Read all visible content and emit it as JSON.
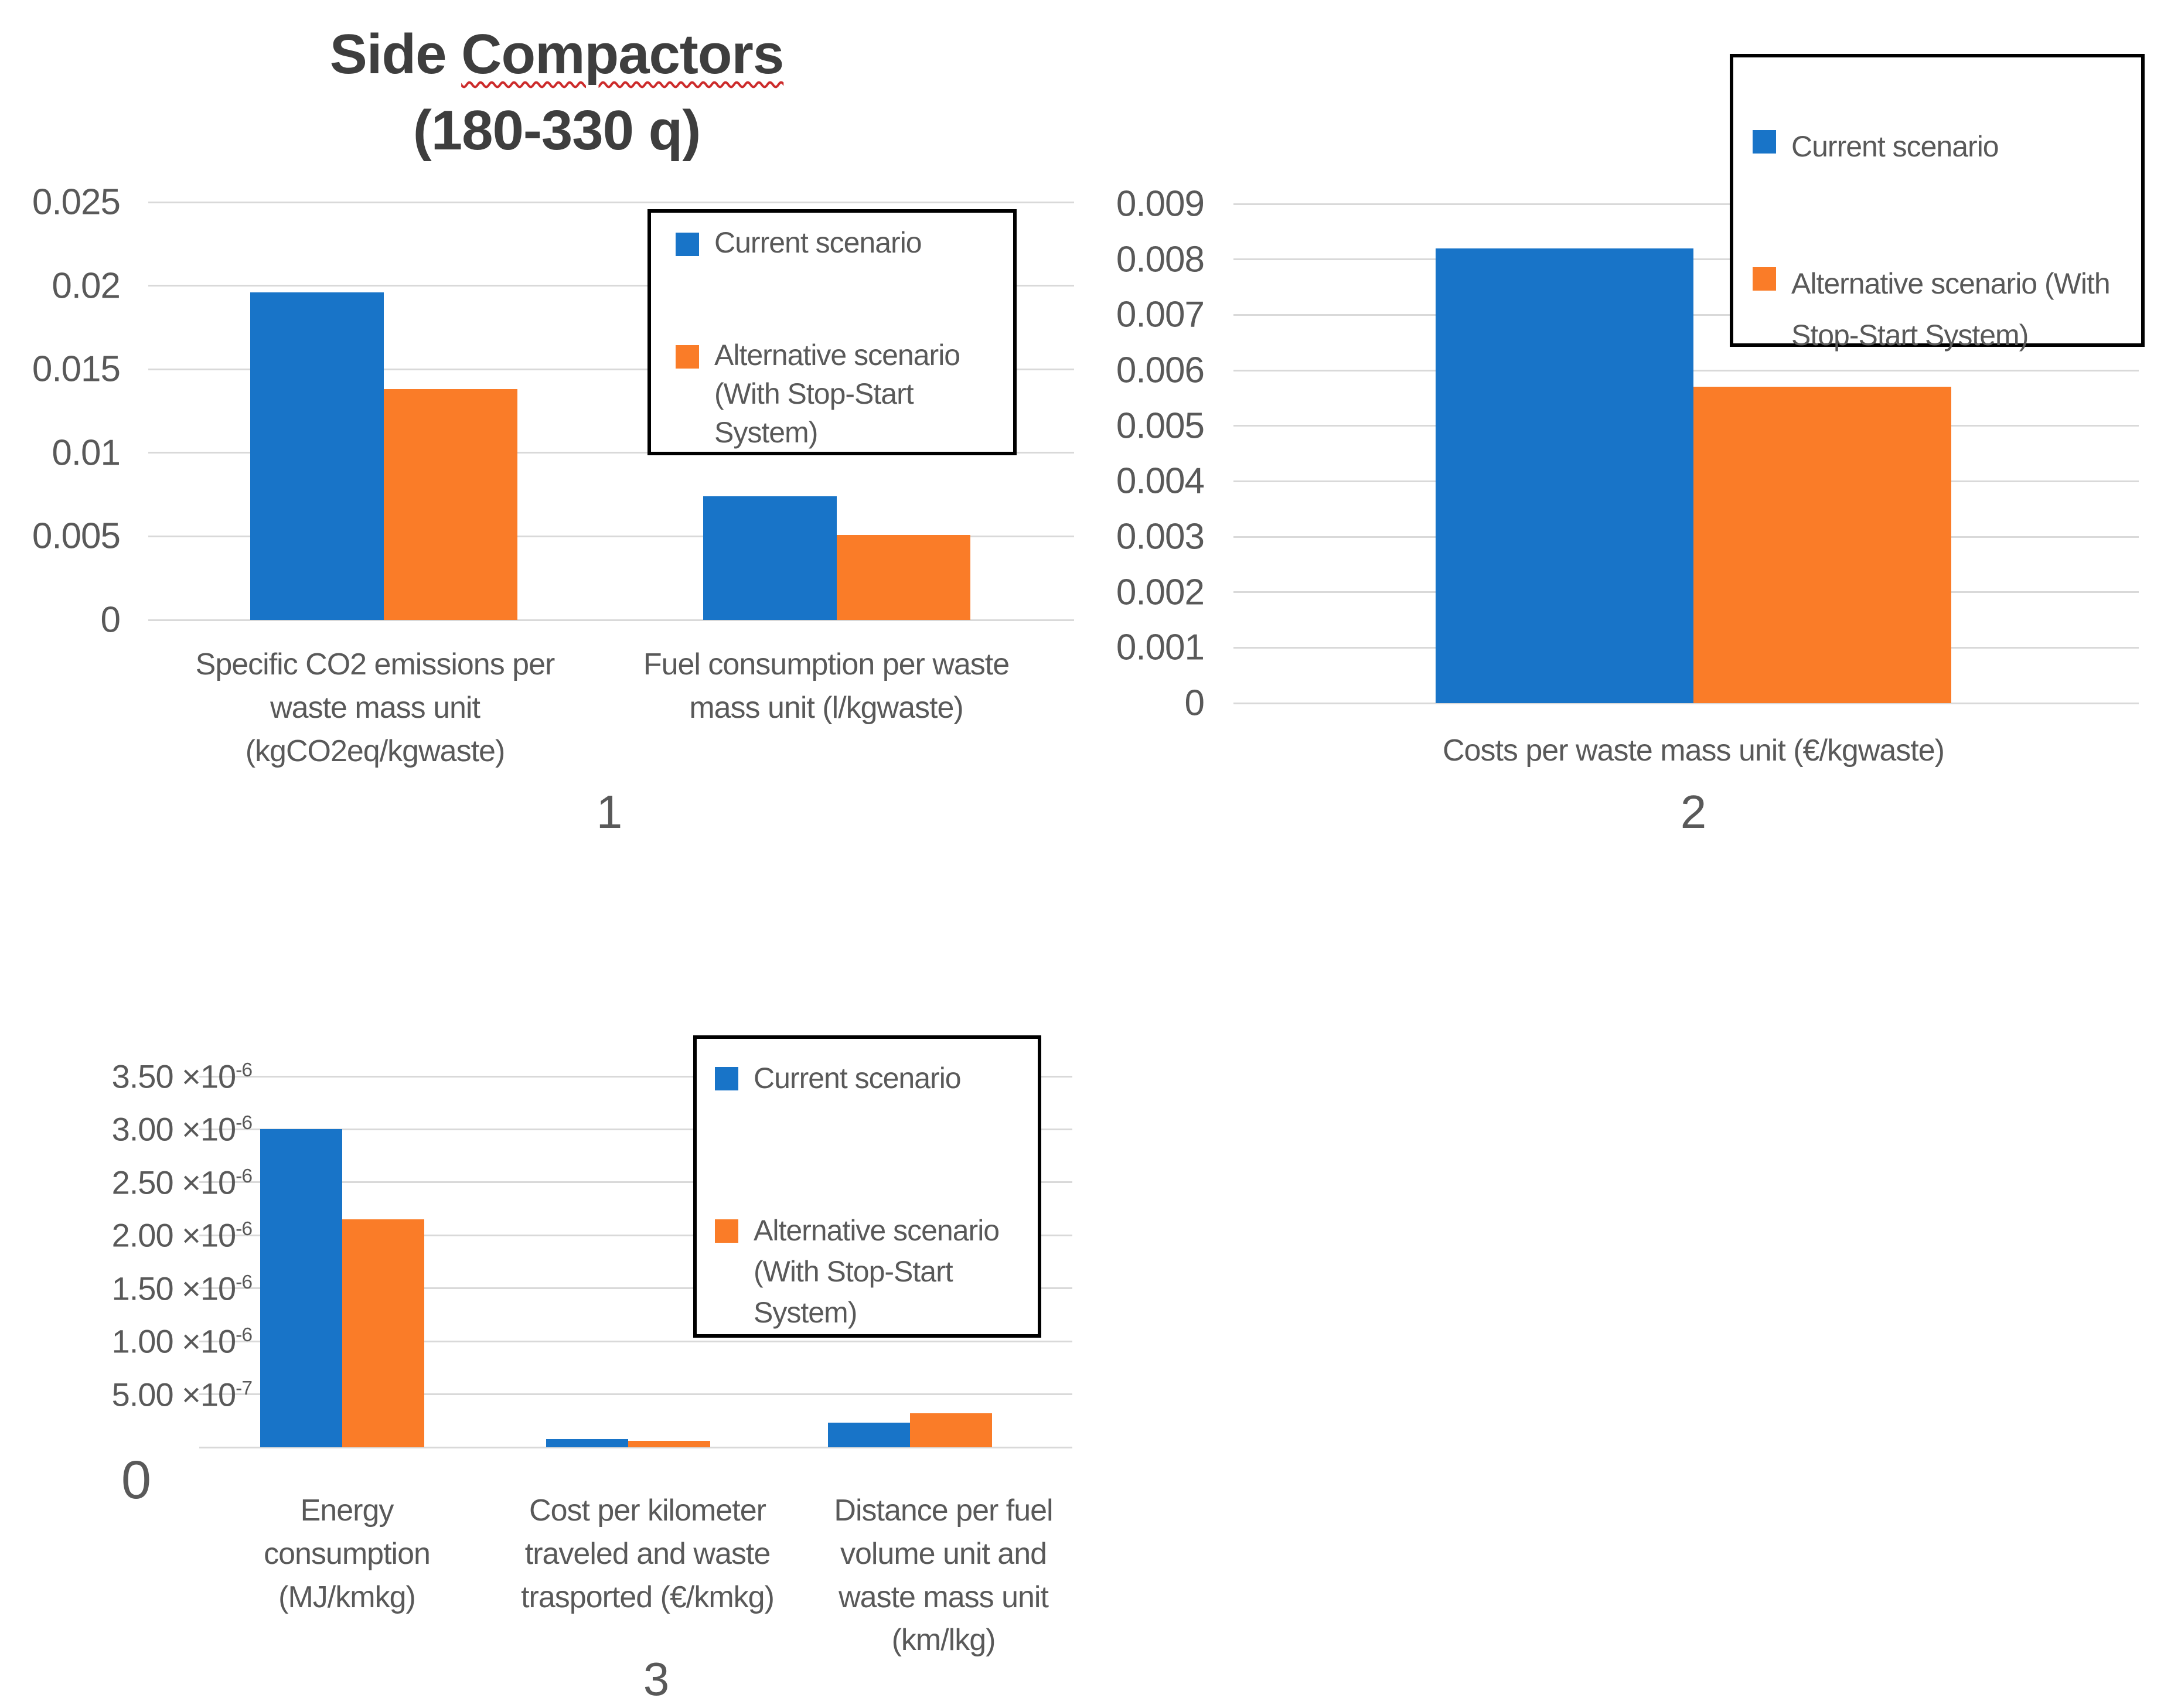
{
  "page_title": "Side Compactors (180-330 q)",
  "title": {
    "word1": "Side ",
    "word2": "Compactors",
    "line2": "(180-330 q)"
  },
  "colors": {
    "current": "#1874C8",
    "alternative": "#FA7C28",
    "gridline": "#D9D9D9",
    "text": "#595959",
    "title_text": "#3E3E3E",
    "legend_border": "#000000",
    "spellcheck_underline": "#CC2B2B"
  },
  "legend_labels": {
    "current": "Current scenario",
    "alternative": "Alternative scenario (With Stop-Start System)"
  },
  "chart_data": [
    {
      "id": "chart1",
      "type": "bar",
      "number_label": "1",
      "title": "Side Compactors (180-330 q)",
      "categories": [
        "Specific CO2 emissions per waste mass unit (kgCO2eq/kgwaste)",
        "Fuel consumption per waste mass unit (l/kgwaste)"
      ],
      "categories_lines": [
        [
          "Specific CO2 emissions per",
          "waste mass unit",
          "(kgCO2eq/kgwaste)"
        ],
        [
          "Fuel consumption per waste",
          "mass unit (l/kgwaste)"
        ]
      ],
      "series": [
        {
          "name": "Current scenario",
          "color": "current",
          "values": [
            0.0196,
            0.0074
          ]
        },
        {
          "name": "Alternative scenario (With Stop-Start System)",
          "color": "alternative",
          "values": [
            0.0138,
            0.0051
          ]
        }
      ],
      "ylim": [
        0,
        0.025
      ],
      "grid": true,
      "legend_position": "upper right inside plot",
      "yticks": [
        "0.025",
        "0.02",
        "0.015",
        "0.01",
        "0.005",
        "0"
      ],
      "legend_items": [
        {
          "series": "Current scenario",
          "color": "current",
          "lines": [
            "Current scenario"
          ]
        },
        {
          "series": "Alternative scenario (With Stop-Start System)",
          "color": "alternative",
          "lines": [
            "Alternative scenario",
            "(With Stop-Start",
            "System)"
          ]
        }
      ]
    },
    {
      "id": "chart2",
      "type": "bar",
      "number_label": "2",
      "categories": [
        "Costs per waste mass unit (€/kgwaste)"
      ],
      "categories_lines": [
        [
          "Costs per waste mass unit (€/kgwaste)"
        ]
      ],
      "series": [
        {
          "name": "Current scenario",
          "color": "current",
          "values": [
            0.0082
          ]
        },
        {
          "name": "Alternative scenario (With Stop-Start System)",
          "color": "alternative",
          "values": [
            0.0057
          ]
        }
      ],
      "ylim": [
        0,
        0.009
      ],
      "grid": true,
      "legend_position": "upper right overlapping plot",
      "yticks": [
        "0.009",
        "0.008",
        "0.007",
        "0.006",
        "0.005",
        "0.004",
        "0.003",
        "0.002",
        "0.001",
        "0"
      ],
      "legend_items": [
        {
          "series": "Current scenario",
          "color": "current",
          "lines": [
            "Current scenario"
          ]
        },
        {
          "series": "Alternative scenario (With Stop-Start System)",
          "color": "alternative",
          "lines": [
            "Alternative scenario (With",
            "Stop-Start System)"
          ]
        }
      ]
    },
    {
      "id": "chart3",
      "type": "bar",
      "number_label": "3",
      "categories": [
        "Energy consumption (MJ/kmkg)",
        "Cost per kilometer traveled and waste trasported (€/kmkg)",
        "Distance per fuel volume unit and waste mass unit (km/lkg)"
      ],
      "categories_lines": [
        [
          "Energy",
          "consumption",
          "(MJ/kmkg)"
        ],
        [
          "Cost per kilometer",
          "traveled and waste",
          "trasported (€/kmkg)"
        ],
        [
          "Distance per fuel",
          "volume unit and",
          "waste mass unit",
          "(km/lkg)"
        ]
      ],
      "series": [
        {
          "name": "Current scenario",
          "color": "current",
          "values": [
            3e-06,
            8e-08,
            2.3e-07
          ]
        },
        {
          "name": "Alternative scenario (With Stop-Start System)",
          "color": "alternative",
          "values": [
            2.15e-06,
            6e-08,
            3.2e-07
          ]
        }
      ],
      "ylim": [
        0,
        3.5e-06
      ],
      "grid": true,
      "legend_position": "upper right inside plot",
      "yticks": [
        "3.50 ×10^-6",
        "3.00 ×10^-6",
        "2.50 ×10^-6",
        "2.00 ×10^-6",
        "1.50 ×10^-6",
        "1.00 ×10^-6",
        "5.00 ×10^-7",
        "0"
      ],
      "legend_items": [
        {
          "series": "Current scenario",
          "color": "current",
          "lines": [
            "Current scenario"
          ]
        },
        {
          "series": "Alternative scenario (With Stop-Start System)",
          "color": "alternative",
          "lines": [
            "Alternative scenario",
            "(With Stop-Start",
            "System)"
          ]
        }
      ]
    }
  ]
}
